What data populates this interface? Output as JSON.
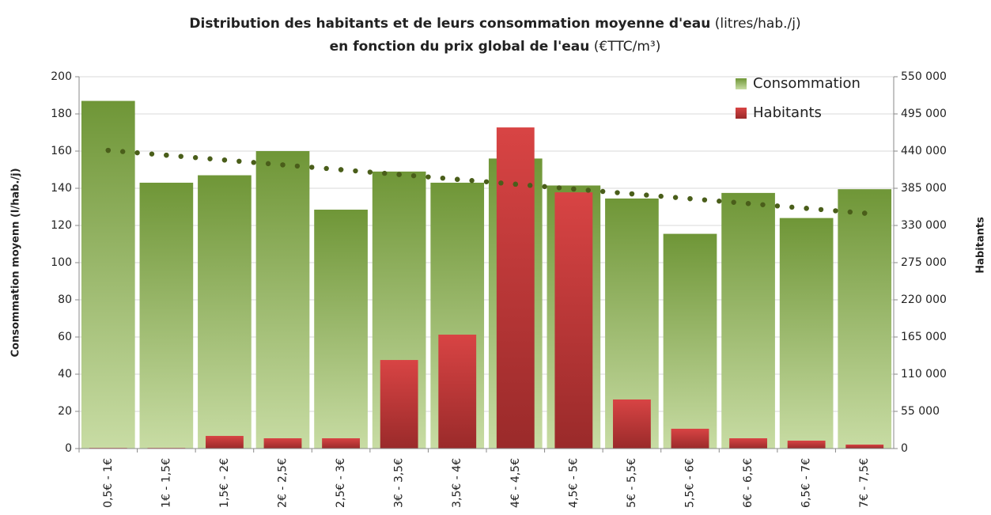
{
  "chart_data": {
    "type": "bar",
    "title": "Distribution des habitants et de leurs consommation moyenne d'eau",
    "title_unit": "(litres/hab./j)",
    "subtitle": "en fonction du prix global de l'eau",
    "subtitle_unit": "(€TTC/m³)",
    "y_label": "Consommation moyenn (l/hab./j)",
    "y2_label": "Habitants",
    "categories": [
      "0,5€ - 1€",
      "1€ - 1,5€",
      "1,5€ - 2€",
      "2€ - 2,5€",
      "2,5€ - 3€",
      "3€ - 3,5€",
      "3,5€ - 4€",
      "4€ - 4,5€",
      "4,5€ - 5€",
      "5€ - 5,5€",
      "5,5€ - 6€",
      "6€ - 6,5€",
      "6,5€ - 7€",
      "7€ - 7,5€"
    ],
    "series": [
      {
        "name": "Consommation",
        "color": "#77a03c",
        "values": [
          187,
          143,
          147,
          160,
          128.5,
          149,
          143,
          156,
          141.5,
          134.5,
          115.5,
          137.5,
          124,
          139.5
        ]
      },
      {
        "name": "Habitants",
        "color": "#d43f3f",
        "axis": "y2",
        "values": [
          1000,
          1000,
          18700,
          15200,
          15200,
          131000,
          168500,
          475000,
          379000,
          72600,
          29300,
          15200,
          11700,
          5900
        ]
      }
    ],
    "trendline": {
      "color": "#4a5e1a",
      "values": [
        160.4,
        157.8,
        155.2,
        152.6,
        150,
        147.4,
        144.8,
        142.2,
        139.6,
        137,
        134.4,
        131.8,
        129.2,
        126.6
      ]
    },
    "ylim": [
      0,
      200
    ],
    "yticks": [
      0,
      20,
      40,
      60,
      80,
      100,
      120,
      140,
      160,
      180,
      200
    ],
    "y2lim": [
      0,
      550000
    ],
    "y2ticks": [
      0,
      {
        "value": 55000,
        "label": "55 000"
      },
      {
        "value": 110000,
        "label": "110 000"
      },
      {
        "value": 165000,
        "label": "165 000"
      },
      {
        "value": 220000,
        "label": "220 000"
      },
      {
        "value": 275000,
        "label": "275 000"
      },
      {
        "value": 330000,
        "label": "330 000"
      },
      {
        "value": 385000,
        "label": "385 000"
      },
      {
        "value": 440000,
        "label": "440 000"
      },
      {
        "value": 495000,
        "label": "495 000"
      },
      {
        "value": 550000,
        "label": "550 000"
      }
    ],
    "grid": true,
    "legend": "top-right"
  }
}
